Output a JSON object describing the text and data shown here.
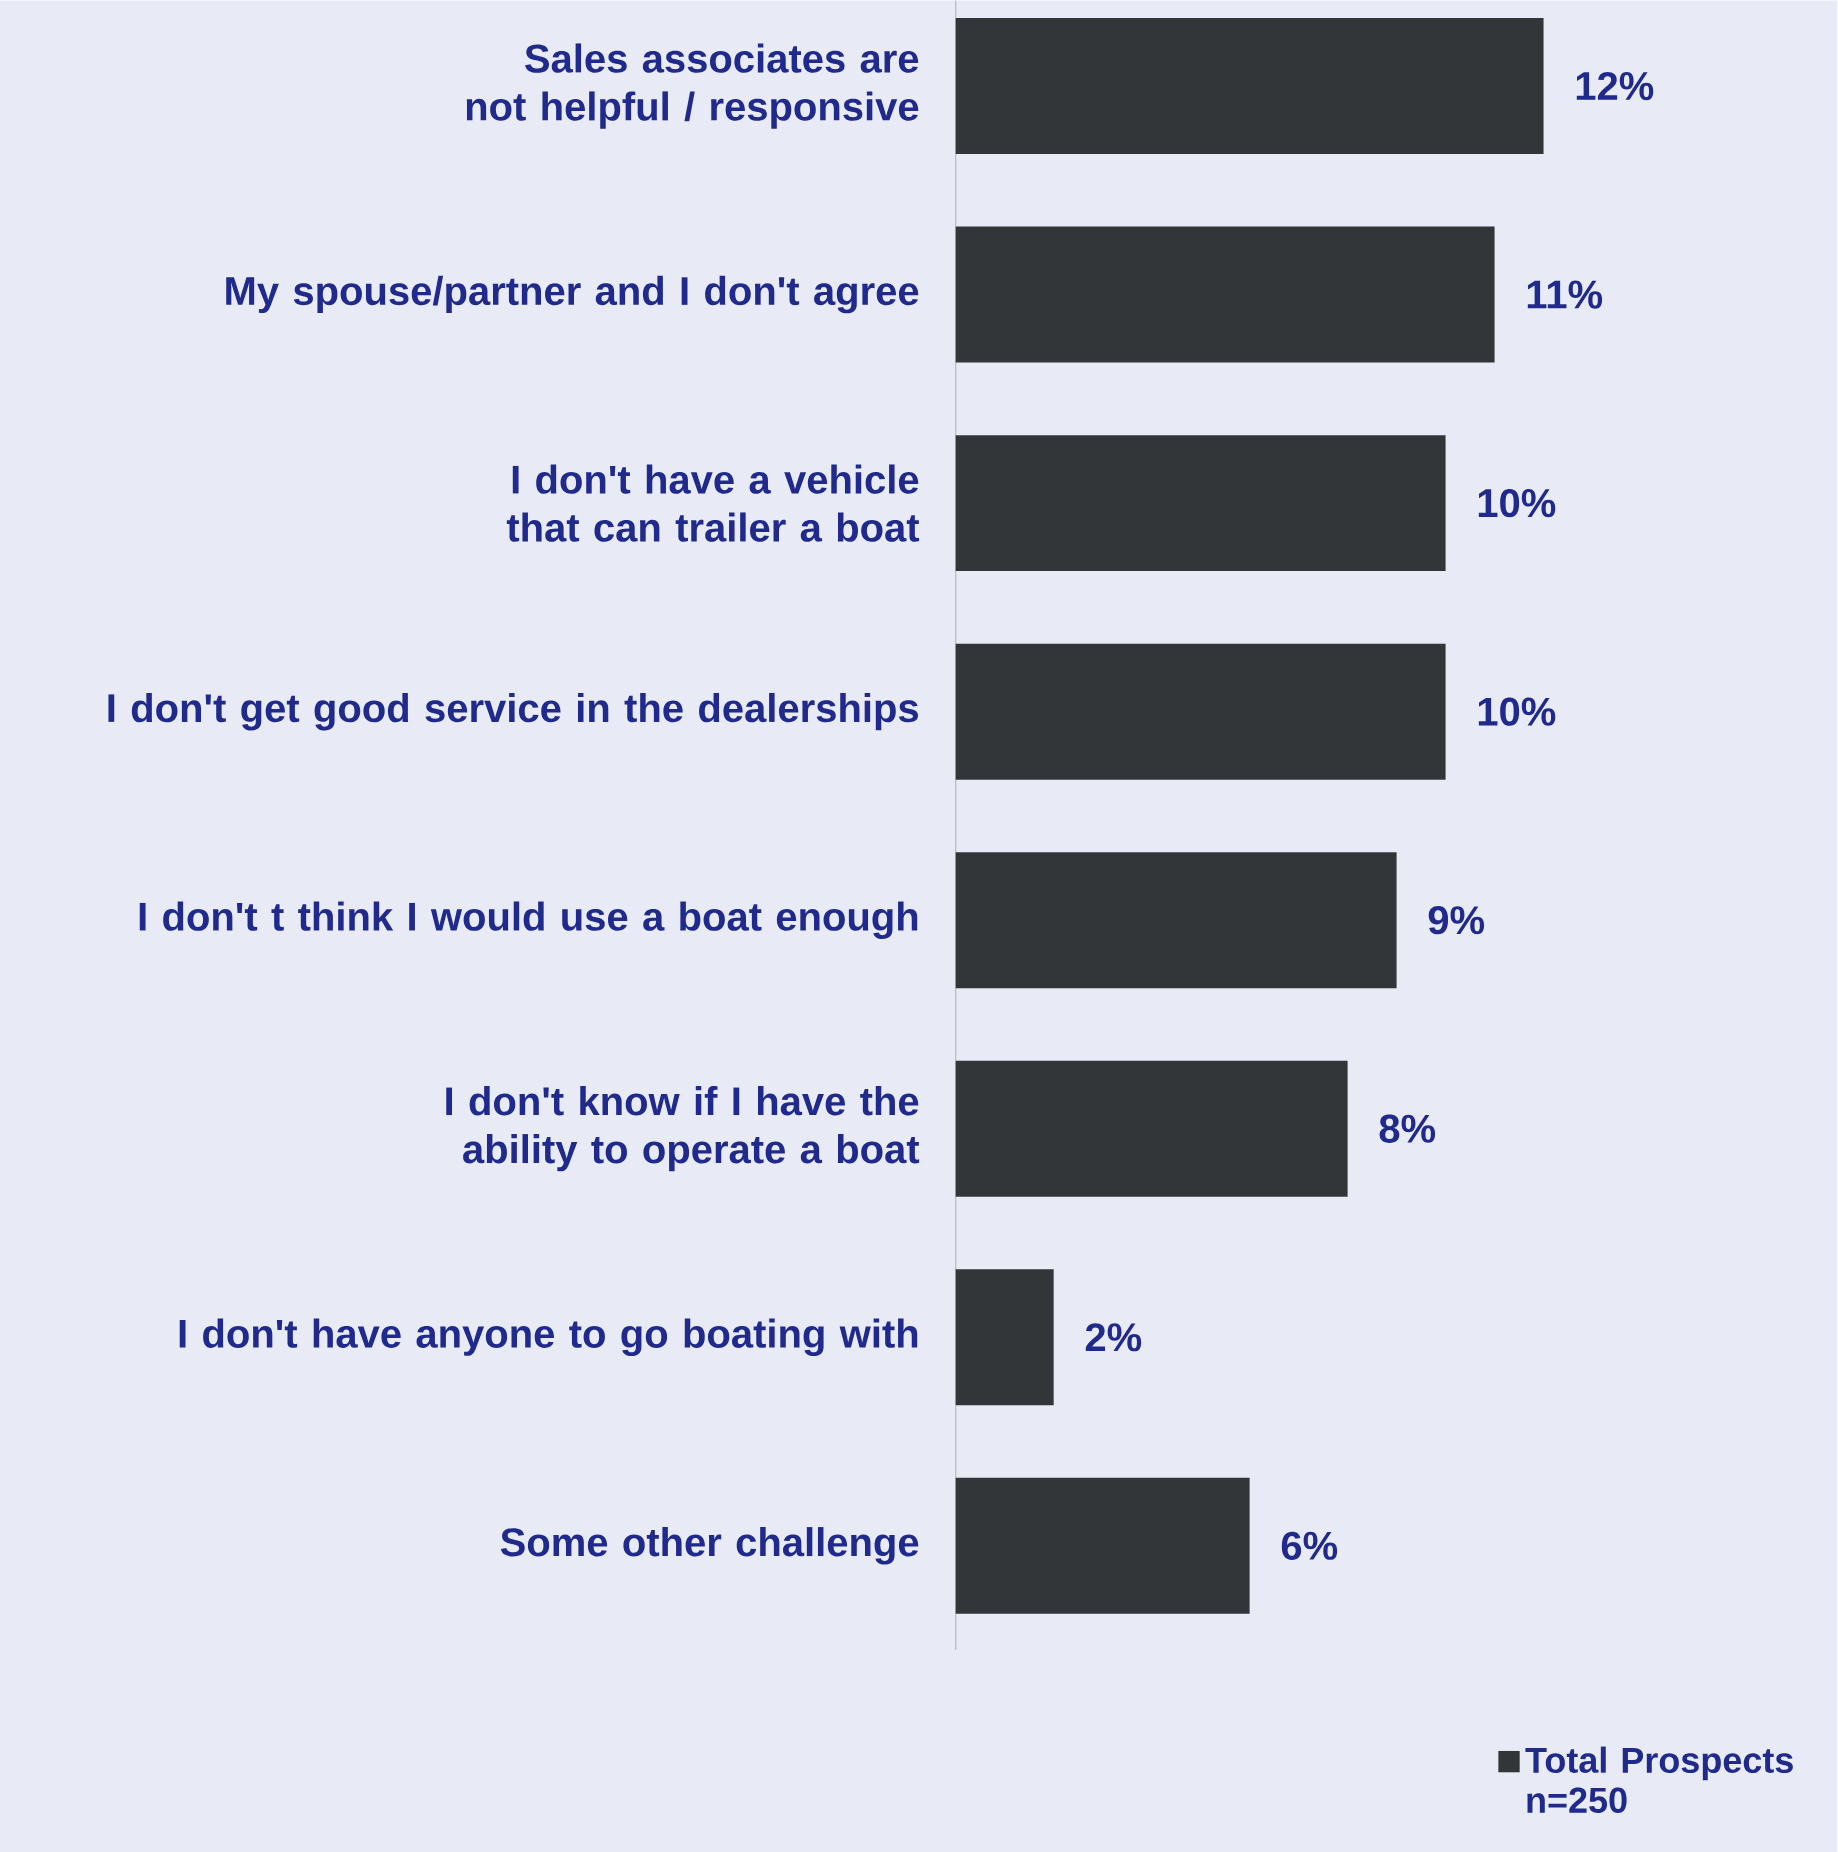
{
  "chart_data": {
    "type": "bar",
    "orientation": "horizontal",
    "categories": [
      "Sales associates are not helpful / responsive",
      "My spouse/partner and I don't  agree",
      "I don't have a vehicle that can trailer a boat",
      "I don't get good service in the dealerships",
      "I don't t think I would use a boat enough",
      "I don't know if I have the ability to operate a boat",
      "I don't have anyone to go boating with",
      "Some other challenge"
    ],
    "series": [
      {
        "name": "Total Prospects n=250",
        "color": "#333639",
        "values": [
          12,
          11,
          10,
          10,
          9,
          8,
          2,
          6
        ],
        "value_labels": [
          "12%",
          "11%",
          "10%",
          "10%",
          "9%",
          "8%",
          "2%",
          "6%"
        ]
      }
    ],
    "legend": "bottom right"
  }
}
